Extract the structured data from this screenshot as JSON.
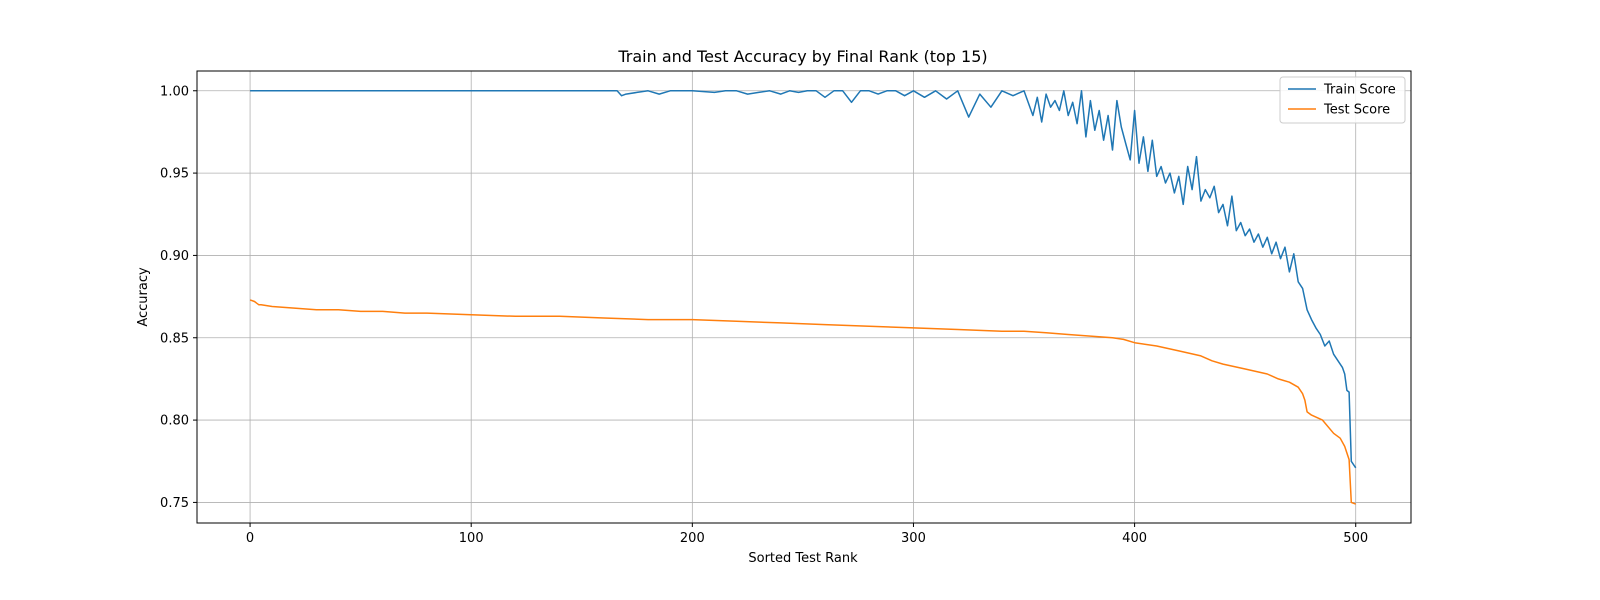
{
  "chart_data": {
    "type": "line",
    "title": "Train and Test Accuracy by Final Rank (top 15)",
    "xlabel": "Sorted Test Rank",
    "ylabel": "Accuracy",
    "xlim": [
      -24,
      525
    ],
    "ylim": [
      0.7375,
      1.012
    ],
    "xticks": [
      0,
      100,
      200,
      300,
      400,
      500
    ],
    "xtick_labels": [
      "0",
      "100",
      "200",
      "300",
      "400",
      "500"
    ],
    "yticks": [
      0.75,
      0.8,
      0.85,
      0.9,
      0.95,
      1.0
    ],
    "ytick_labels": [
      "0.75",
      "0.80",
      "0.85",
      "0.90",
      "0.95",
      "1.00"
    ],
    "grid": true,
    "legend_position": "top-right",
    "series": [
      {
        "name": "Train Score",
        "color": "#1f77b4",
        "x": [
          0,
          50,
          100,
          150,
          166,
          168,
          170,
          175,
          180,
          185,
          190,
          195,
          200,
          210,
          215,
          220,
          225,
          230,
          235,
          240,
          244,
          248,
          252,
          256,
          260,
          264,
          268,
          272,
          276,
          280,
          284,
          288,
          292,
          296,
          300,
          305,
          310,
          315,
          320,
          325,
          330,
          335,
          340,
          345,
          350,
          354,
          356,
          358,
          360,
          362,
          364,
          366,
          368,
          370,
          372,
          374,
          376,
          378,
          380,
          382,
          384,
          386,
          388,
          390,
          392,
          394,
          396,
          398,
          400,
          402,
          404,
          406,
          408,
          410,
          412,
          414,
          416,
          418,
          420,
          422,
          424,
          426,
          428,
          430,
          432,
          434,
          436,
          438,
          440,
          442,
          444,
          446,
          448,
          450,
          452,
          454,
          456,
          458,
          460,
          462,
          464,
          466,
          468,
          470,
          472,
          474,
          476,
          478,
          480,
          482,
          484,
          486,
          488,
          490,
          492,
          494,
          495,
          496,
          497,
          498,
          500
        ],
        "y": [
          1.0,
          1.0,
          1.0,
          1.0,
          1.0,
          0.997,
          0.998,
          0.999,
          1.0,
          0.998,
          1.0,
          1.0,
          1.0,
          0.999,
          1.0,
          1.0,
          0.998,
          0.999,
          1.0,
          0.998,
          1.0,
          0.999,
          1.0,
          1.0,
          0.996,
          1.0,
          1.0,
          0.993,
          1.0,
          1.0,
          0.998,
          1.0,
          1.0,
          0.997,
          1.0,
          0.996,
          1.0,
          0.995,
          1.0,
          0.984,
          0.998,
          0.99,
          1.0,
          0.997,
          1.0,
          0.985,
          0.996,
          0.981,
          0.998,
          0.99,
          0.994,
          0.988,
          1.0,
          0.985,
          0.993,
          0.98,
          1.0,
          0.972,
          0.994,
          0.976,
          0.988,
          0.97,
          0.985,
          0.964,
          0.994,
          0.978,
          0.968,
          0.958,
          0.988,
          0.956,
          0.972,
          0.951,
          0.97,
          0.948,
          0.954,
          0.944,
          0.95,
          0.938,
          0.948,
          0.931,
          0.954,
          0.94,
          0.96,
          0.933,
          0.94,
          0.935,
          0.942,
          0.926,
          0.931,
          0.918,
          0.936,
          0.915,
          0.92,
          0.912,
          0.916,
          0.908,
          0.913,
          0.905,
          0.911,
          0.901,
          0.908,
          0.898,
          0.905,
          0.89,
          0.901,
          0.884,
          0.88,
          0.867,
          0.861,
          0.856,
          0.852,
          0.845,
          0.848,
          0.84,
          0.836,
          0.832,
          0.828,
          0.818,
          0.817,
          0.775,
          0.771
        ]
      },
      {
        "name": "Test Score",
        "color": "#ff7f0e",
        "x": [
          0,
          2,
          3,
          4,
          5,
          10,
          20,
          30,
          40,
          50,
          60,
          70,
          80,
          100,
          120,
          140,
          160,
          180,
          200,
          220,
          240,
          260,
          280,
          300,
          320,
          340,
          350,
          360,
          370,
          380,
          390,
          395,
          400,
          410,
          420,
          430,
          435,
          440,
          450,
          460,
          465,
          470,
          474,
          476,
          477,
          478,
          480,
          485,
          490,
          493,
          495,
          497,
          498,
          500
        ],
        "y": [
          0.873,
          0.872,
          0.871,
          0.87,
          0.87,
          0.869,
          0.868,
          0.867,
          0.867,
          0.866,
          0.866,
          0.865,
          0.865,
          0.864,
          0.863,
          0.863,
          0.862,
          0.861,
          0.861,
          0.86,
          0.859,
          0.858,
          0.857,
          0.856,
          0.855,
          0.854,
          0.854,
          0.853,
          0.852,
          0.851,
          0.85,
          0.849,
          0.847,
          0.845,
          0.842,
          0.839,
          0.836,
          0.834,
          0.831,
          0.828,
          0.825,
          0.823,
          0.82,
          0.816,
          0.812,
          0.805,
          0.803,
          0.8,
          0.792,
          0.789,
          0.784,
          0.776,
          0.75,
          0.749
        ]
      }
    ]
  }
}
